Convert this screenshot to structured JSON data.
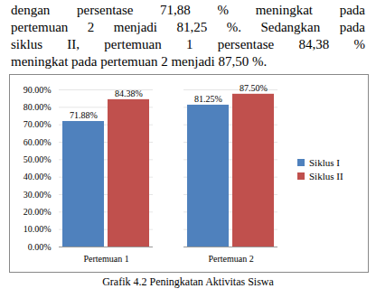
{
  "text": [
    "dengan persentase 71,88 % meningkat pada",
    "pertemuan 2 menjadi 81,25 %. Sedangkan pada",
    "siklus II, pertemuan 1 persentase 84,38 %",
    "meningkat pada pertemuan 2 menjadi 87,50 %."
  ],
  "chart_data": {
    "type": "bar",
    "title": "Grafik 4.2 Peningkatan Aktivitas Siswa",
    "categories": [
      "Pertemuan 1",
      "Pertemuan 2"
    ],
    "series": [
      {
        "name": "Siklus I",
        "color": "#4f81bd",
        "values": [
          71.88,
          81.25
        ],
        "value_labels": [
          "71.88%",
          "81.25%"
        ]
      },
      {
        "name": "Siklus II",
        "color": "#c0504d",
        "values": [
          84.38,
          87.5
        ],
        "value_labels": [
          "84.38%",
          "87.50%"
        ]
      }
    ],
    "ylim": [
      0,
      90
    ],
    "yticks": [
      {
        "value": 0,
        "label": "0.00%"
      },
      {
        "value": 10,
        "label": "10.00%"
      },
      {
        "value": 20,
        "label": "20.00%"
      },
      {
        "value": 30,
        "label": "30.00%"
      },
      {
        "value": 40,
        "label": "40.00%"
      },
      {
        "value": 50,
        "label": "50.00%"
      },
      {
        "value": 60,
        "label": "60.00%"
      },
      {
        "value": 70,
        "label": "70.00%"
      },
      {
        "value": 80,
        "label": "80.00%"
      },
      {
        "value": 90,
        "label": "90.00%"
      }
    ],
    "grid": true,
    "legend": "right",
    "data_labels": true
  }
}
